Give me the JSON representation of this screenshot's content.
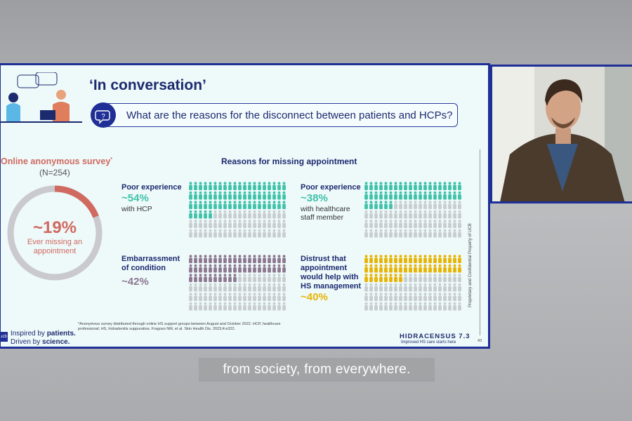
{
  "slide": {
    "title": "‘In conversation’",
    "question": "What are the reasons for the disconnect between patients and HCPs?",
    "survey": {
      "title": "Online anonymous survey",
      "title_mark": "*",
      "n": "(N=254)",
      "value": "~19%",
      "label": "Ever missing an appointment",
      "fraction": 0.19
    },
    "reasons_title": "Reasons for missing appointment",
    "blocks": [
      {
        "heading": "Poor experience",
        "percent": "~54%",
        "sub": "with HCP",
        "fraction": 0.54,
        "color": "#3fc2a9"
      },
      {
        "heading": "Poor experience",
        "percent": "~38%",
        "sub": "with healthcare staff member",
        "fraction": 0.38,
        "color": "#3fc2a9"
      },
      {
        "heading": "Embarrassment of condition",
        "percent": "~42%",
        "sub": "",
        "fraction": 0.42,
        "color": "#8c7890"
      },
      {
        "heading": "Distrust that appointment would help with HS management",
        "percent": "~40%",
        "sub": "",
        "fraction": 0.4,
        "color": "#e8b400"
      }
    ],
    "footnote": "*Anonymous survey distributed through online HS support groups between August and October 2022. HCP, healthcare professional; HS, hidradenitis suppurativa. Fragoso NM, et al. Skin Health Dis. 2023;4:e322.",
    "tagline_1": "Inspired by ",
    "tagline_1b": "patients.",
    "tagline_2": "Driven by ",
    "tagline_2b": "science.",
    "logo": "ucb",
    "brand": "HIDRACENSUS 7.3",
    "brand_sub": "Improved HS care starts here",
    "page": "43",
    "proprietary": "Proprietary and Confidential Property of UCB"
  },
  "caption": "from society, from everywhere.",
  "colors": {
    "accent": "#1f2f96",
    "survey": "#d06a60",
    "teal": "#3fc2a9",
    "mauve": "#8c7890",
    "gold": "#e8b400",
    "grey_icon": "#c8cdd0"
  }
}
